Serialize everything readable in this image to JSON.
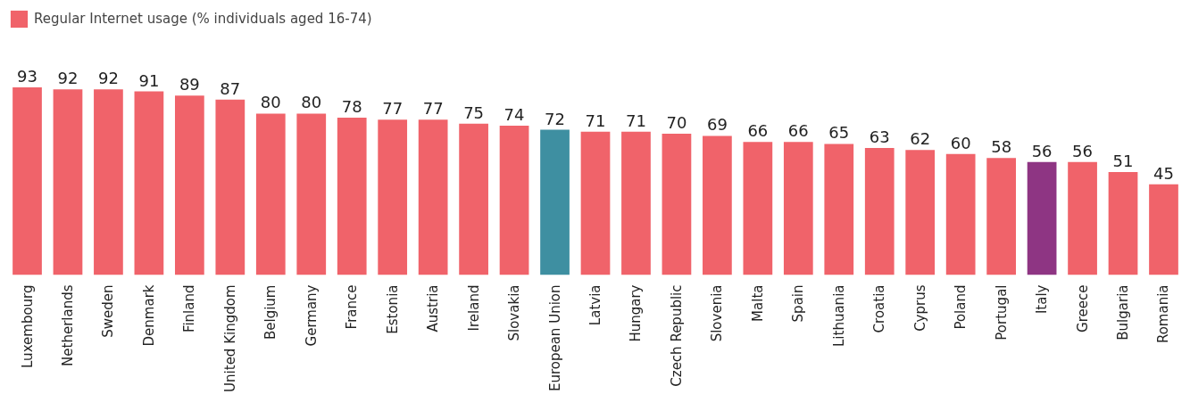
{
  "chart_data": {
    "type": "bar",
    "categories": [
      "Luxembourg",
      "Netherlands",
      "Sweden",
      "Denmark",
      "Finland",
      "United Kingdom",
      "Belgium",
      "Germany",
      "France",
      "Estonia",
      "Austria",
      "Ireland",
      "Slovakia",
      "European Union",
      "Latvia",
      "Hungary",
      "Czech Republic",
      "Slovenia",
      "Malta",
      "Spain",
      "Lithuania",
      "Croatia",
      "Cyprus",
      "Poland",
      "Portugal",
      "Italy",
      "Greece",
      "Bulgaria",
      "Romania"
    ],
    "series": [
      {
        "name": "Regular Internet usage (% individuals aged 16-74)",
        "colors": [
          "#f0636a",
          "#f0636a",
          "#f0636a",
          "#f0636a",
          "#f0636a",
          "#f0636a",
          "#f0636a",
          "#f0636a",
          "#f0636a",
          "#f0636a",
          "#f0636a",
          "#f0636a",
          "#f0636a",
          "#3e8fa1",
          "#f0636a",
          "#f0636a",
          "#f0636a",
          "#f0636a",
          "#f0636a",
          "#f0636a",
          "#f0636a",
          "#f0636a",
          "#f0636a",
          "#f0636a",
          "#f0636a",
          "#8e3583",
          "#f0636a",
          "#f0636a",
          "#f0636a"
        ],
        "values": [
          93,
          92,
          92,
          91,
          89,
          87,
          80,
          80,
          78,
          77,
          77,
          75,
          74,
          72,
          71,
          71,
          70,
          69,
          66,
          66,
          65,
          63,
          62,
          60,
          58,
          56,
          56,
          51,
          45
        ]
      }
    ],
    "data_labels": true,
    "legend": "top left",
    "grid": false
  }
}
